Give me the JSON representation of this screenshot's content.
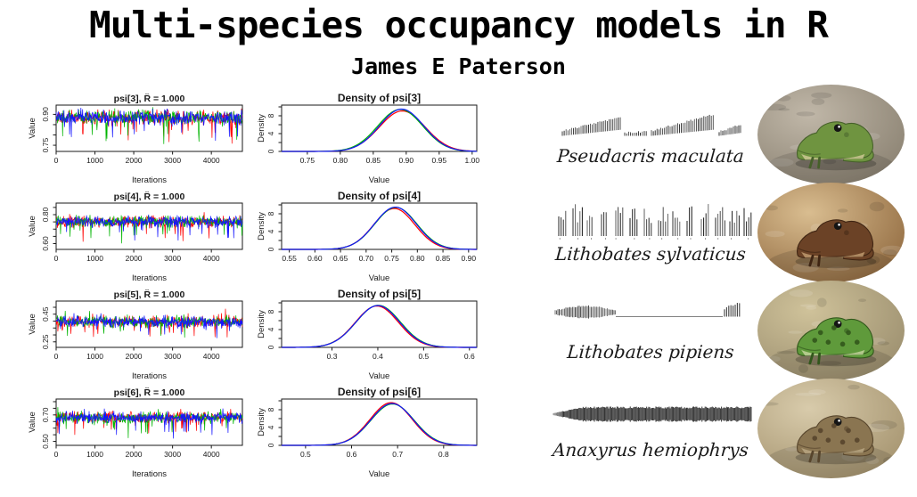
{
  "header": {
    "title": "Multi-species occupancy models in R",
    "author": "James E Paterson"
  },
  "chart_data": [
    {
      "panel": "trace",
      "type": "line",
      "subtype": "mcmc_trace",
      "title": "psi[3], R̂ = 1.000",
      "xlabel": "Iterations",
      "ylabel": "Value",
      "xlim": [
        0,
        4800
      ],
      "xticks": [
        {
          "v": 0,
          "label": "0"
        },
        {
          "v": 1000,
          "label": "1000"
        },
        {
          "v": 2000,
          "label": "2000"
        },
        {
          "v": 3000,
          "label": "3000"
        },
        {
          "v": 4000,
          "label": "4000"
        }
      ],
      "ylim": [
        0.72,
        0.945
      ],
      "ytick_step": 0.05,
      "yticks_labeled": [
        {
          "v": 0.75,
          "label": "0.75"
        },
        {
          "v": 0.9,
          "label": "0.90"
        }
      ],
      "spike_down": 0.12,
      "spike_up": 0.03,
      "chains": [
        {
          "name": "chain 1",
          "color": "#ff0000",
          "center": 0.885,
          "spread": 0.05
        },
        {
          "name": "chain 2",
          "color": "#00b400",
          "center": 0.885,
          "spread": 0.05
        },
        {
          "name": "chain 3",
          "color": "#1414ff",
          "center": 0.885,
          "spread": 0.05
        }
      ]
    },
    {
      "panel": "density",
      "type": "line",
      "subtype": "kernel_density",
      "title": "Density of psi[3]",
      "xlabel": "Value",
      "ylabel": "Density",
      "xlim": [
        0.711,
        1.007
      ],
      "xticks": [
        {
          "v": 0.75,
          "label": "0.75"
        },
        {
          "v": 0.8,
          "label": "0.80"
        },
        {
          "v": 0.85,
          "label": "0.85"
        },
        {
          "v": 0.9,
          "label": "0.90"
        },
        {
          "v": 0.95,
          "label": "0.95"
        },
        {
          "v": 1.0,
          "label": "1.00"
        }
      ],
      "ylim": [
        0,
        10.4
      ],
      "ytick_step": 2,
      "yticks_labeled": [
        {
          "v": 0,
          "label": "0"
        },
        {
          "v": 4,
          "label": "4"
        },
        {
          "v": 8,
          "label": "8"
        }
      ],
      "chains": [
        {
          "name": "chain 1",
          "color": "#ff0000",
          "mean": 0.894,
          "sd": 0.0345,
          "peak": 9.1
        },
        {
          "name": "chain 2",
          "color": "#00b400",
          "mean": 0.891,
          "sd": 0.034,
          "peak": 9.45
        },
        {
          "name": "chain 3",
          "color": "#1414ff",
          "mean": 0.893,
          "sd": 0.0335,
          "peak": 9.5
        }
      ]
    },
    {
      "panel": "trace",
      "type": "line",
      "subtype": "mcmc_trace",
      "title": "psi[4], R̂ = 1.000",
      "xlabel": "Iterations",
      "ylabel": "Value",
      "xlim": [
        0,
        4800
      ],
      "xticks": [
        {
          "v": 0,
          "label": "0"
        },
        {
          "v": 1000,
          "label": "1000"
        },
        {
          "v": 2000,
          "label": "2000"
        },
        {
          "v": 3000,
          "label": "3000"
        },
        {
          "v": 4000,
          "label": "4000"
        }
      ],
      "ylim": [
        0.56,
        0.88
      ],
      "ytick_step": 0.05,
      "yticks_labeled": [
        {
          "v": 0.6,
          "label": "0.60"
        },
        {
          "v": 0.8,
          "label": "0.80"
        }
      ],
      "spike_down": 0.13,
      "spike_up": 0.04,
      "chains": [
        {
          "name": "chain 1",
          "color": "#ff0000",
          "center": 0.752,
          "spread": 0.055
        },
        {
          "name": "chain 2",
          "color": "#00b400",
          "center": 0.752,
          "spread": 0.055
        },
        {
          "name": "chain 3",
          "color": "#1414ff",
          "center": 0.752,
          "spread": 0.055
        }
      ]
    },
    {
      "panel": "density",
      "type": "line",
      "subtype": "kernel_density",
      "title": "Density of psi[4]",
      "xlabel": "Value",
      "ylabel": "Density",
      "xlim": [
        0.535,
        0.916
      ],
      "xticks": [
        {
          "v": 0.55,
          "label": "0.55"
        },
        {
          "v": 0.6,
          "label": "0.60"
        },
        {
          "v": 0.65,
          "label": "0.65"
        },
        {
          "v": 0.7,
          "label": "0.70"
        },
        {
          "v": 0.75,
          "label": "0.75"
        },
        {
          "v": 0.8,
          "label": "0.80"
        },
        {
          "v": 0.85,
          "label": "0.85"
        },
        {
          "v": 0.9,
          "label": "0.90"
        }
      ],
      "ylim": [
        0,
        10.4
      ],
      "ytick_step": 2,
      "yticks_labeled": [
        {
          "v": 0,
          "label": "0"
        },
        {
          "v": 4,
          "label": "4"
        },
        {
          "v": 8,
          "label": "8"
        }
      ],
      "chains": [
        {
          "name": "chain 1",
          "color": "#ff0000",
          "mean": 0.755,
          "sd": 0.04,
          "peak": 9.2
        },
        {
          "name": "chain 2",
          "color": "#00b400",
          "mean": 0.758,
          "sd": 0.041,
          "peak": 9.45
        },
        {
          "name": "chain 3",
          "color": "#1414ff",
          "mean": 0.757,
          "sd": 0.0405,
          "peak": 9.5
        }
      ]
    },
    {
      "panel": "trace",
      "type": "line",
      "subtype": "mcmc_trace",
      "title": "psi[5], R̂ = 1.000",
      "xlabel": "Iterations",
      "ylabel": "Value",
      "xlim": [
        0,
        4800
      ],
      "xticks": [
        {
          "v": 0,
          "label": "0"
        },
        {
          "v": 1000,
          "label": "1000"
        },
        {
          "v": 2000,
          "label": "2000"
        },
        {
          "v": 3000,
          "label": "3000"
        },
        {
          "v": 4000,
          "label": "4000"
        }
      ],
      "ylim": [
        0.21,
        0.545
      ],
      "ytick_step": 0.05,
      "yticks_labeled": [
        {
          "v": 0.25,
          "label": "0.25"
        },
        {
          "v": 0.45,
          "label": "0.45"
        }
      ],
      "spike_down": 0.1,
      "spike_up": 0.06,
      "chains": [
        {
          "name": "chain 1",
          "color": "#ff0000",
          "center": 0.395,
          "spread": 0.06
        },
        {
          "name": "chain 2",
          "color": "#00b400",
          "center": 0.395,
          "spread": 0.06
        },
        {
          "name": "chain 3",
          "color": "#1414ff",
          "center": 0.395,
          "spread": 0.06
        }
      ]
    },
    {
      "panel": "density",
      "type": "line",
      "subtype": "kernel_density",
      "title": "Density of psi[5]",
      "xlabel": "Value",
      "ylabel": "Density",
      "xlim": [
        0.19,
        0.616
      ],
      "xticks": [
        {
          "v": 0.3,
          "label": "0.3"
        },
        {
          "v": 0.4,
          "label": "0.4"
        },
        {
          "v": 0.5,
          "label": "0.5"
        },
        {
          "v": 0.6,
          "label": "0.6"
        }
      ],
      "ylim": [
        0,
        10.4
      ],
      "ytick_step": 2,
      "yticks_labeled": [
        {
          "v": 0,
          "label": "0"
        },
        {
          "v": 4,
          "label": "4"
        },
        {
          "v": 8,
          "label": "8"
        }
      ],
      "chains": [
        {
          "name": "chain 1",
          "color": "#ff0000",
          "mean": 0.398,
          "sd": 0.047,
          "peak": 9.3
        },
        {
          "name": "chain 2",
          "color": "#00b400",
          "mean": 0.401,
          "sd": 0.048,
          "peak": 9.45
        },
        {
          "name": "chain 3",
          "color": "#1414ff",
          "mean": 0.4,
          "sd": 0.0475,
          "peak": 9.4
        }
      ]
    },
    {
      "panel": "trace",
      "type": "line",
      "subtype": "mcmc_trace",
      "title": "psi[6], R̂ = 1.000",
      "xlabel": "Iterations",
      "ylabel": "Value",
      "xlim": [
        0,
        4800
      ],
      "xticks": [
        {
          "v": 0,
          "label": "0"
        },
        {
          "v": 1000,
          "label": "1000"
        },
        {
          "v": 2000,
          "label": "2000"
        },
        {
          "v": 3000,
          "label": "3000"
        },
        {
          "v": 4000,
          "label": "4000"
        }
      ],
      "ylim": [
        0.47,
        0.82
      ],
      "ytick_step": 0.05,
      "yticks_labeled": [
        {
          "v": 0.5,
          "label": "0.50"
        },
        {
          "v": 0.7,
          "label": "0.70"
        }
      ],
      "spike_down": 0.13,
      "spike_up": 0.05,
      "chains": [
        {
          "name": "chain 1",
          "color": "#ff0000",
          "center": 0.68,
          "spread": 0.06
        },
        {
          "name": "chain 2",
          "color": "#00b400",
          "center": 0.68,
          "spread": 0.06
        },
        {
          "name": "chain 3",
          "color": "#1414ff",
          "center": 0.68,
          "spread": 0.06
        }
      ]
    },
    {
      "panel": "density",
      "type": "line",
      "subtype": "kernel_density",
      "title": "Density of psi[6]",
      "xlabel": "Value",
      "ylabel": "Density",
      "xlim": [
        0.448,
        0.872
      ],
      "xticks": [
        {
          "v": 0.5,
          "label": "0.5"
        },
        {
          "v": 0.6,
          "label": "0.6"
        },
        {
          "v": 0.7,
          "label": "0.7"
        },
        {
          "v": 0.8,
          "label": "0.8"
        }
      ],
      "ylim": [
        0,
        10.4
      ],
      "ytick_step": 2,
      "yticks_labeled": [
        {
          "v": 0,
          "label": "0"
        },
        {
          "v": 4,
          "label": "4"
        },
        {
          "v": 8,
          "label": "8"
        }
      ],
      "chains": [
        {
          "name": "chain 1",
          "color": "#ff0000",
          "mean": 0.686,
          "sd": 0.046,
          "peak": 9.6
        },
        {
          "name": "chain 2",
          "color": "#00b400",
          "mean": 0.689,
          "sd": 0.047,
          "peak": 9.3
        },
        {
          "name": "chain 3",
          "color": "#1414ff",
          "mean": 0.688,
          "sd": 0.0465,
          "peak": 9.4
        }
      ]
    }
  ],
  "species": [
    {
      "name": "Pseudacris maculata",
      "call_pattern": "ascending-pulse-trains",
      "photo": {
        "desc": "small green frog on pale grey wood",
        "bg1": "#c0b7a8",
        "bg2": "#857c6c",
        "frog": "#6f9440",
        "frog_dark": "#46602a",
        "belly": "#d8cf9f",
        "spots": false
      }
    },
    {
      "name": "Lithobates sylvaticus",
      "call_pattern": "cluck-series",
      "photo": {
        "desc": "dark brown wood frog on tan leaf litter",
        "bg1": "#d9bd90",
        "bg2": "#8a6238",
        "frog": "#6b4226",
        "frog_dark": "#3f2513",
        "belly": "#c9a678",
        "spots": false
      }
    },
    {
      "name": "Lithobates pipiens",
      "call_pattern": "snore-then-burst",
      "photo": {
        "desc": "green leopard frog with dark spots in dry grass",
        "bg1": "#cfc29a",
        "bg2": "#96896a",
        "frog": "#5f9a3b",
        "frog_dark": "#32571c",
        "belly": "#cfd9a8",
        "spots": true
      }
    },
    {
      "name": "Anaxyrus hemiophrys",
      "call_pattern": "continuous-trill",
      "photo": {
        "desc": "brown toad on sandy gravel",
        "bg1": "#d8cbab",
        "bg2": "#a08e69",
        "frog": "#8a7551",
        "frog_dark": "#57452c",
        "belly": "#bfae8a",
        "spots": true
      }
    }
  ]
}
